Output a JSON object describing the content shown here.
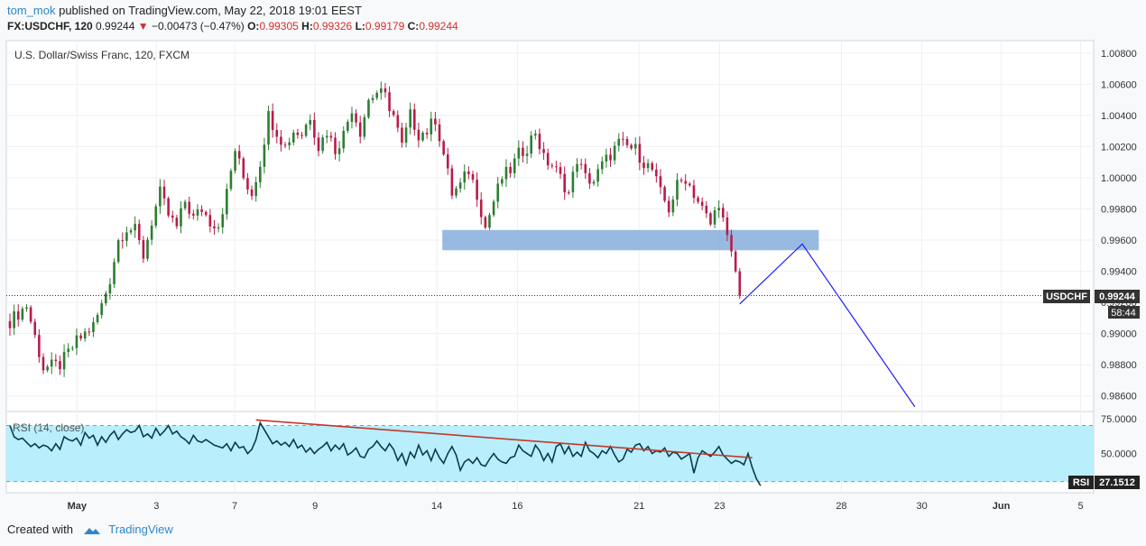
{
  "header": {
    "user": "tom_mok",
    "published": "published on TradingView.com, May 22, 2018 19:01 EEST",
    "symbol": "FX:USDCHF, 120",
    "last": "0.99244",
    "change": "−0.00473 (−0.47%)",
    "o_label": "O:",
    "o": "0.99305",
    "h_label": "H:",
    "h": "0.99326",
    "l_label": "L:",
    "l": "0.99179",
    "c_label": "C:",
    "c": "0.99244"
  },
  "footer": {
    "created": "Created with",
    "brand": "TradingView"
  },
  "colors": {
    "up": "#2e7d32",
    "down": "#b71c4a",
    "rsi_fill": "#b9eefc",
    "zone": "#7ea9d9",
    "arrow": "#1a1aff",
    "trend": "#c0392b"
  },
  "chart_data": [
    {
      "type": "candlestick",
      "title": "U.S. Dollar/Swiss Franc, 120, FXCM",
      "ylim": [
        0.985,
        1.0088
      ],
      "ytick_labels": [
        "0.98600",
        "0.98800",
        "0.99000",
        "0.99200",
        "0.99400",
        "0.99600",
        "0.99800",
        "1.00000",
        "1.00200",
        "1.00400",
        "1.00600",
        "1.00800"
      ],
      "yticks": [
        0.986,
        0.988,
        0.99,
        0.992,
        0.994,
        0.996,
        0.998,
        1.0,
        1.002,
        1.004,
        1.006,
        1.008
      ],
      "x_labels": [
        "May",
        "3",
        "7",
        "9",
        "14",
        "16",
        "21",
        "23",
        "28",
        "30",
        "Jun",
        "5"
      ],
      "last_label": "USDCHF",
      "last_value": "0.99244",
      "countdown": "58:44",
      "last": 0.99244,
      "zone": {
        "x_from": "14",
        "x_to": "28",
        "top": 0.99665,
        "bottom": 0.99535
      },
      "projection": [
        {
          "bar": 175,
          "y": 0.9919
        },
        {
          "bar": 190,
          "y": 0.99575
        },
        {
          "bar": 217,
          "y": 0.9853
        }
      ],
      "close_path": [
        [
          0,
          0.9908
        ],
        [
          4,
          0.9918
        ],
        [
          8,
          0.9878
        ],
        [
          12,
          0.988
        ],
        [
          16,
          0.9895
        ],
        [
          20,
          0.9905
        ],
        [
          22,
          0.9918
        ],
        [
          24,
          0.9935
        ],
        [
          26,
          0.996
        ],
        [
          28,
          0.9968
        ],
        [
          30,
          0.9966
        ],
        [
          32,
          0.995
        ],
        [
          34,
          0.9972
        ],
        [
          36,
          0.999
        ],
        [
          38,
          0.9976
        ],
        [
          40,
          0.9968
        ],
        [
          42,
          0.9985
        ],
        [
          44,
          0.9974
        ],
        [
          46,
          0.998
        ],
        [
          48,
          0.9972
        ],
        [
          50,
          0.997
        ],
        [
          52,
          0.999
        ],
        [
          54,
          1.0018
        ],
        [
          56,
          1.0
        ],
        [
          58,
          0.999
        ],
        [
          60,
          1.001
        ],
        [
          62,
          1.004
        ],
        [
          64,
          1.003
        ],
        [
          66,
          1.002
        ],
        [
          68,
          1.003
        ],
        [
          70,
          1.0028
        ],
        [
          72,
          1.004
        ],
        [
          74,
          1.002
        ],
        [
          76,
          1.003
        ],
        [
          78,
          1.0018
        ],
        [
          80,
          1.0028
        ],
        [
          82,
          1.0045
        ],
        [
          84,
          1.003
        ],
        [
          86,
          1.005
        ],
        [
          88,
          1.0055
        ],
        [
          90,
          1.0052
        ],
        [
          92,
          1.004
        ],
        [
          94,
          1.002
        ],
        [
          96,
          1.004
        ],
        [
          98,
          1.0028
        ],
        [
          100,
          1.003
        ],
        [
          102,
          1.0038
        ],
        [
          104,
          1.0015
        ],
        [
          106,
          0.999
        ],
        [
          108,
          0.9995
        ],
        [
          110,
          1.0005
        ],
        [
          112,
          0.999
        ],
        [
          114,
          0.9968
        ],
        [
          116,
          0.9985
        ],
        [
          118,
          1.0
        ],
        [
          120,
          1.0005
        ],
        [
          122,
          1.0015
        ],
        [
          124,
          1.002
        ],
        [
          126,
          1.003
        ],
        [
          128,
          1.0012
        ],
        [
          130,
          1.0008
        ],
        [
          132,
          1.0
        ],
        [
          134,
          0.999
        ],
        [
          136,
          1.0012
        ],
        [
          138,
          1.0
        ],
        [
          140,
          0.9998
        ],
        [
          142,
          1.0008
        ],
        [
          144,
          1.0015
        ],
        [
          146,
          1.0022
        ],
        [
          148,
          1.002
        ],
        [
          150,
          1.0018
        ],
        [
          152,
          1.001
        ],
        [
          154,
          1.0005
        ],
        [
          156,
          0.999
        ],
        [
          158,
          0.998
        ],
        [
          160,
          0.9995
        ],
        [
          162,
          1.0
        ],
        [
          164,
          0.999
        ],
        [
          166,
          0.998
        ],
        [
          168,
          0.997
        ],
        [
          170,
          0.9985
        ],
        [
          172,
          0.996
        ],
        [
          174,
          0.994
        ],
        [
          175,
          0.9924
        ]
      ]
    },
    {
      "type": "line",
      "title": "RSI (14, close)",
      "ylim": [
        22,
        80
      ],
      "ytick_labels": [
        "50.0000",
        "75.0000"
      ],
      "yticks": [
        50,
        75
      ],
      "bands": [
        70,
        30
      ],
      "last_label": "RSI",
      "last_value": "27.1512",
      "trendline": [
        [
          59,
          74
        ],
        [
          178,
          47
        ]
      ],
      "series": [
        {
          "values": [
            70,
            62,
            60,
            61,
            58,
            55,
            57,
            54,
            56,
            55,
            52,
            57,
            53,
            62,
            60,
            59,
            61,
            56,
            65,
            61,
            63,
            56,
            62,
            58,
            63,
            66,
            60,
            64,
            67,
            65,
            66,
            70,
            62,
            64,
            61,
            68,
            63,
            66,
            70,
            64,
            66,
            62,
            60,
            57,
            63,
            59,
            58,
            60,
            58,
            56,
            55,
            54,
            57,
            52,
            58,
            54,
            55,
            50,
            53,
            60,
            72,
            67,
            62,
            57,
            59,
            56,
            58,
            55,
            60,
            54,
            56,
            51,
            54,
            50,
            53,
            55,
            58,
            52,
            56,
            53,
            57,
            49,
            51,
            54,
            48,
            47,
            53,
            55,
            59,
            55,
            52,
            57,
            53,
            45,
            50,
            42,
            51,
            47,
            56,
            49,
            52,
            45,
            53,
            47,
            43,
            50,
            55,
            49,
            38,
            44,
            46,
            43,
            47,
            42,
            41,
            46,
            50,
            46,
            44,
            43,
            47,
            48,
            56,
            52,
            50,
            48,
            56,
            52,
            45,
            50,
            44,
            55,
            57,
            50,
            55,
            48,
            51,
            48,
            58,
            52,
            50,
            47,
            52,
            50,
            55,
            49,
            44,
            46,
            53,
            51,
            56,
            57,
            52,
            55,
            50,
            52,
            51,
            54,
            48,
            51,
            50,
            46,
            48,
            50,
            36,
            47,
            52,
            50,
            48,
            51,
            55,
            49,
            46,
            43,
            45,
            44,
            42,
            50,
            40,
            32,
            27
          ]
        }
      ]
    }
  ]
}
